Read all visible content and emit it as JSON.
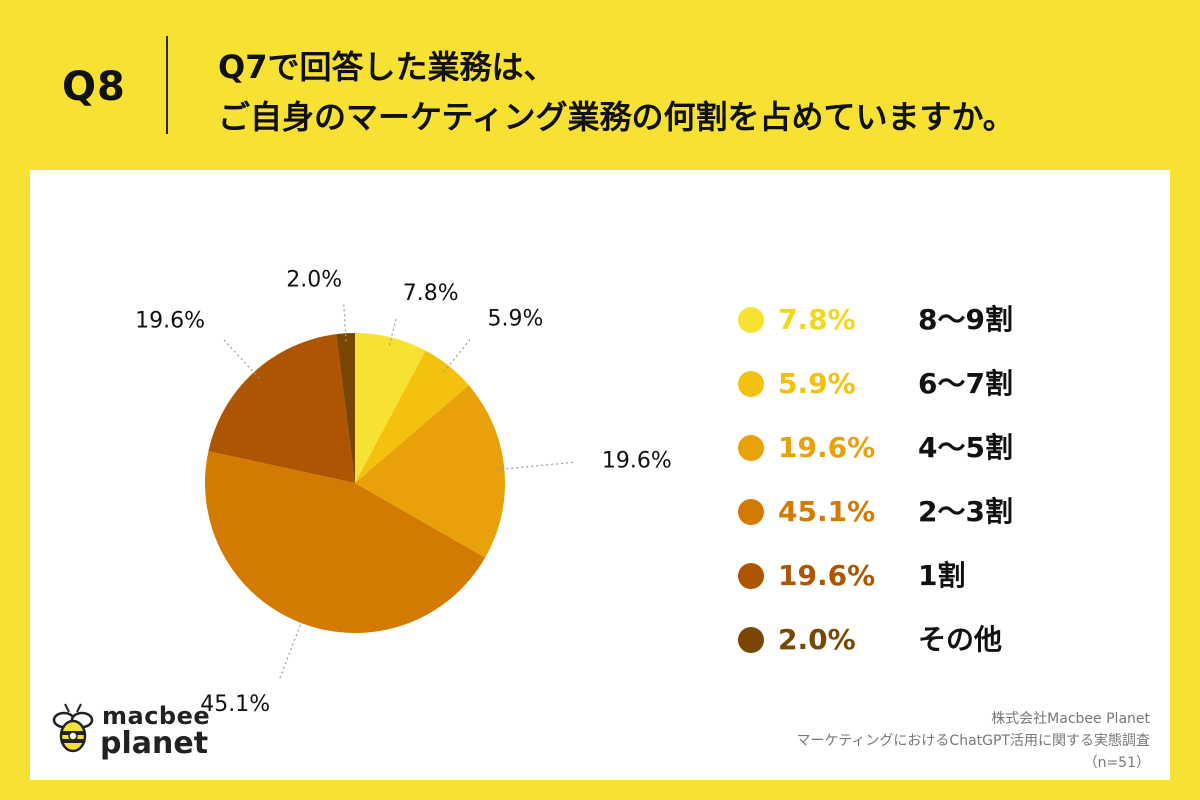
{
  "header": {
    "q_label": "Q8",
    "title_line1": "Q7で回答した業務は、",
    "title_line2": "ご自身のマーケティング業務の何割を占めていますか。"
  },
  "chart_data": {
    "type": "pie",
    "categories": [
      "8〜9割",
      "6〜7割",
      "4〜5割",
      "2〜3割",
      "1割",
      "その他"
    ],
    "values": [
      7.8,
      5.9,
      19.6,
      45.1,
      19.6,
      2.0
    ],
    "labels": [
      "7.8%",
      "5.9%",
      "19.6%",
      "45.1%",
      "19.6%",
      "2.0%"
    ],
    "colors": [
      "#f7e233",
      "#f3c10e",
      "#e9a10a",
      "#d37a00",
      "#ad5502",
      "#7a4604"
    ],
    "legend_position": "right",
    "start": "12 o'clock",
    "direction": "clockwise"
  },
  "footer": {
    "logo_top": "macbee",
    "logo_bottom": "planet",
    "source_company": "株式会社Macbee Planet",
    "source_survey": "マーケティングにおけるChatGPT活用に関する実態調査",
    "sample_size": "（n=51）"
  }
}
